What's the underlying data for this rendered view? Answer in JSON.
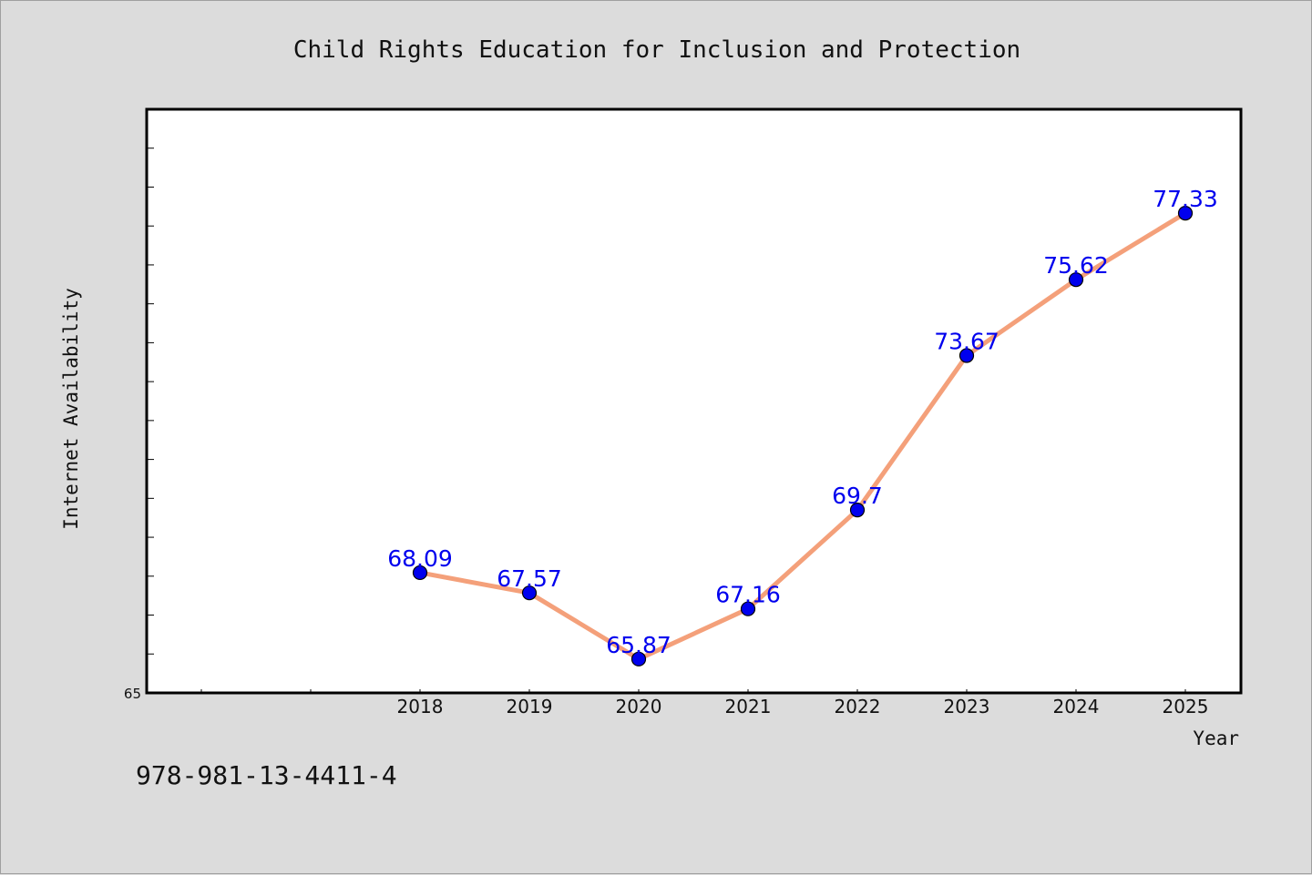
{
  "chart_data": {
    "type": "line",
    "title": "Child Rights Education for Inclusion and Protection",
    "xlabel": "Year",
    "ylabel": "Internet Availability",
    "categories": [
      "2018",
      "2019",
      "2020",
      "2021",
      "2022",
      "2023",
      "2024",
      "2025"
    ],
    "series": [
      {
        "values": [
          68.09,
          67.57,
          65.87,
          67.16,
          69.7,
          73.67,
          75.62,
          77.33
        ],
        "labels": [
          "68.09",
          "67.57",
          "65.87",
          "67.16",
          "69.7",
          "73.67",
          "75.62",
          "77.33"
        ]
      }
    ],
    "y_tick_labels": [
      "65"
    ],
    "ylim": [
      65,
      80
    ],
    "grid": false,
    "colors": {
      "line": "#f4a07a",
      "marker": "#0000ee",
      "marker_edge": "#000000",
      "data_label": "#0000ee"
    }
  },
  "footer": {
    "code": "978-981-13-4411-4"
  }
}
